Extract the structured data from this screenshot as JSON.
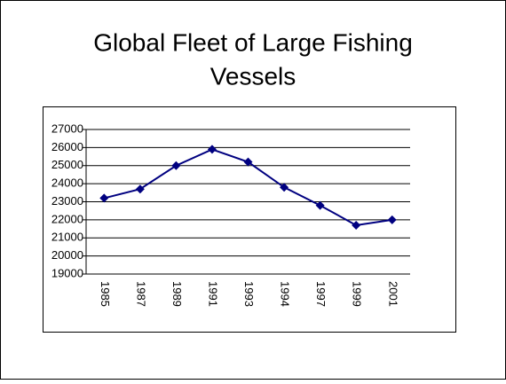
{
  "chart_data": {
    "type": "line",
    "title_lines": [
      "Global Fleet of Large Fishing",
      "Vessels"
    ],
    "categories": [
      "1985",
      "1987",
      "1989",
      "1991",
      "1993",
      "1994",
      "1997",
      "1999",
      "2001"
    ],
    "values": [
      23200,
      23700,
      25000,
      25900,
      25200,
      23800,
      22800,
      21700,
      22000
    ],
    "color": "#000080",
    "ylim": [
      19000,
      27000
    ],
    "yticks": [
      19000,
      20000,
      21000,
      22000,
      23000,
      24000,
      25000,
      26000,
      27000
    ],
    "grid": true
  }
}
